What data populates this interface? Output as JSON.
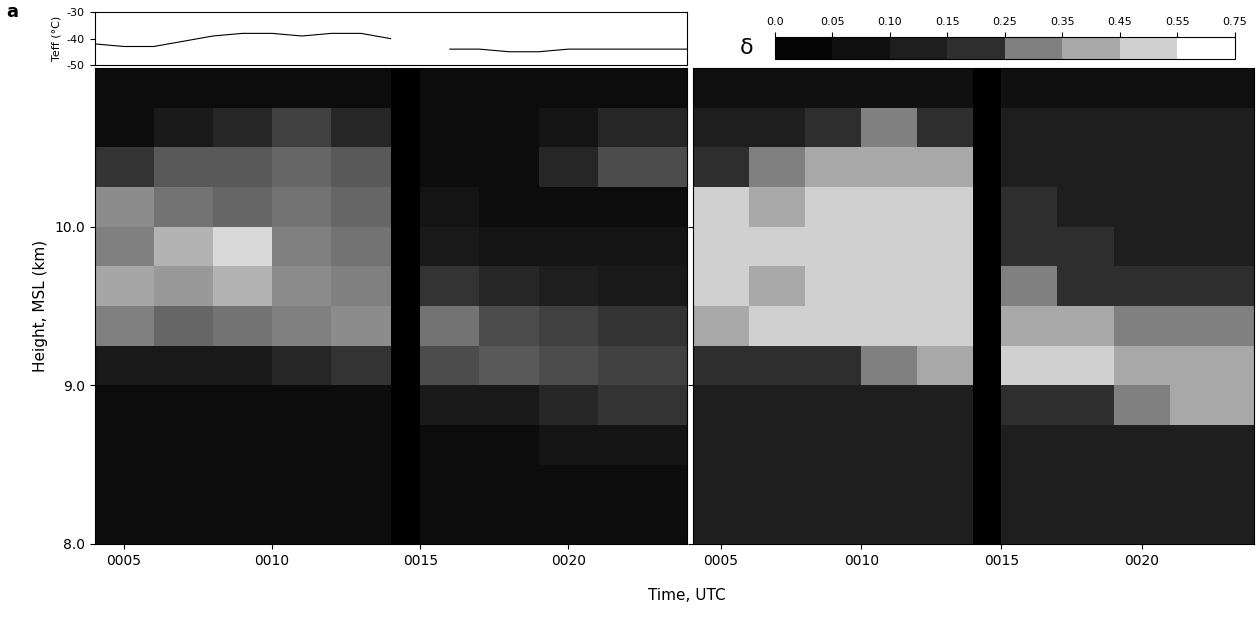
{
  "chart_data": {
    "type": "heatmap",
    "label": "a",
    "xlabel": "Time, UTC",
    "xlim": [
      4,
      24
    ],
    "xticks": [
      {
        "value": 5,
        "label": "0005"
      },
      {
        "value": 10,
        "label": "0010"
      },
      {
        "value": 15,
        "label": "0015"
      },
      {
        "value": 20,
        "label": "0020"
      }
    ],
    "teff": {
      "ylabel": "Teff (°C)",
      "ylim": [
        -50,
        -30
      ],
      "yticks": [
        -50,
        -40,
        -30
      ],
      "x": [
        4,
        5,
        6,
        7,
        8,
        9,
        10,
        11,
        12,
        13,
        14,
        15,
        16,
        17,
        18,
        19,
        20,
        21,
        22,
        23,
        24
      ],
      "values": [
        -42,
        -43,
        -43,
        -41,
        -39,
        -38,
        -38,
        -39,
        -38,
        -38,
        -40,
        null,
        -44,
        -44,
        -45,
        -45,
        -44,
        -44,
        -44,
        -44,
        -44
      ]
    },
    "backscatter": {
      "ylabel": "Height, MSL (km)",
      "ylim": [
        8.0,
        11.0
      ],
      "yticks": [
        8.0,
        9.0,
        10.0
      ],
      "time_edges": [
        4,
        6,
        8,
        10,
        12,
        14,
        15,
        17,
        19,
        21,
        24
      ],
      "height_edges": [
        8.0,
        8.25,
        8.5,
        8.75,
        9.0,
        9.25,
        9.5,
        9.75,
        10.0,
        10.25,
        10.5,
        10.75,
        11.0
      ],
      "value_range": [
        0,
        1
      ],
      "cells": [
        [
          0.05,
          0.05,
          0.05,
          0.05,
          0.05,
          null,
          0.05,
          0.05,
          0.05,
          0.05
        ],
        [
          0.05,
          0.05,
          0.05,
          0.05,
          0.05,
          null,
          0.05,
          0.05,
          0.05,
          0.05
        ],
        [
          0.05,
          0.05,
          0.05,
          0.05,
          0.05,
          null,
          0.05,
          0.05,
          0.08,
          0.08
        ],
        [
          0.05,
          0.05,
          0.05,
          0.05,
          0.05,
          null,
          0.1,
          0.1,
          0.15,
          0.2
        ],
        [
          0.1,
          0.1,
          0.1,
          0.15,
          0.2,
          null,
          0.3,
          0.35,
          0.3,
          0.25
        ],
        [
          0.5,
          0.4,
          0.45,
          0.5,
          0.55,
          null,
          0.45,
          0.3,
          0.25,
          0.2
        ],
        [
          0.65,
          0.6,
          0.7,
          0.55,
          0.5,
          null,
          0.2,
          0.15,
          0.12,
          0.1
        ],
        [
          0.5,
          0.7,
          0.85,
          0.5,
          0.45,
          null,
          0.1,
          0.08,
          0.08,
          0.08
        ],
        [
          0.55,
          0.45,
          0.4,
          0.45,
          0.4,
          null,
          0.08,
          0.05,
          0.05,
          0.05
        ],
        [
          0.2,
          0.35,
          0.35,
          0.4,
          0.35,
          null,
          0.05,
          0.05,
          0.15,
          0.3
        ],
        [
          0.05,
          0.1,
          0.15,
          0.25,
          0.15,
          null,
          0.05,
          0.05,
          0.08,
          0.15
        ],
        [
          0.05,
          0.05,
          0.05,
          0.05,
          0.05,
          null,
          0.05,
          0.05,
          0.05,
          0.05
        ]
      ]
    },
    "depolarization": {
      "colorbar_label": "δ",
      "colorbar_ticks": [
        0.0,
        0.05,
        {
          "value": 0.1,
          "label": "0.10"
        },
        0.15,
        0.25,
        0.35,
        0.45,
        0.55,
        0.75
      ],
      "colorbar_colors": [
        "#050505",
        "#101010",
        "#1e1e1e",
        "#2e2e2e",
        "#808080",
        "#a8a8a8",
        "#d0d0d0",
        "#ffffff"
      ],
      "cells": [
        [
          0.12,
          0.12,
          0.12,
          0.12,
          0.12,
          null,
          0.12,
          0.12,
          0.12,
          0.12
        ],
        [
          0.12,
          0.12,
          0.12,
          0.12,
          0.12,
          null,
          0.12,
          0.12,
          0.12,
          0.12
        ],
        [
          0.12,
          0.12,
          0.12,
          0.12,
          0.12,
          null,
          0.12,
          0.12,
          0.12,
          0.12
        ],
        [
          0.12,
          0.12,
          0.12,
          0.12,
          0.12,
          null,
          0.15,
          0.2,
          0.3,
          0.4
        ],
        [
          0.15,
          0.15,
          0.2,
          0.3,
          0.35,
          null,
          0.45,
          0.45,
          0.4,
          0.35
        ],
        [
          0.4,
          0.45,
          0.45,
          0.5,
          0.5,
          null,
          0.4,
          0.35,
          0.3,
          0.25
        ],
        [
          0.45,
          0.4,
          0.45,
          0.5,
          0.5,
          null,
          0.3,
          0.2,
          0.15,
          0.15
        ],
        [
          0.5,
          0.45,
          0.45,
          0.5,
          0.45,
          null,
          0.2,
          0.15,
          0.12,
          0.12
        ],
        [
          0.45,
          0.4,
          0.45,
          0.45,
          0.45,
          null,
          0.15,
          0.12,
          0.12,
          0.12
        ],
        [
          0.2,
          0.3,
          0.35,
          0.4,
          0.35,
          null,
          0.12,
          0.12,
          0.12,
          0.12
        ],
        [
          0.1,
          0.12,
          0.2,
          0.3,
          0.2,
          null,
          0.1,
          0.1,
          0.1,
          0.1
        ],
        [
          0.08,
          0.08,
          0.08,
          0.08,
          0.08,
          null,
          0.08,
          0.08,
          0.08,
          0.08
        ]
      ]
    }
  }
}
